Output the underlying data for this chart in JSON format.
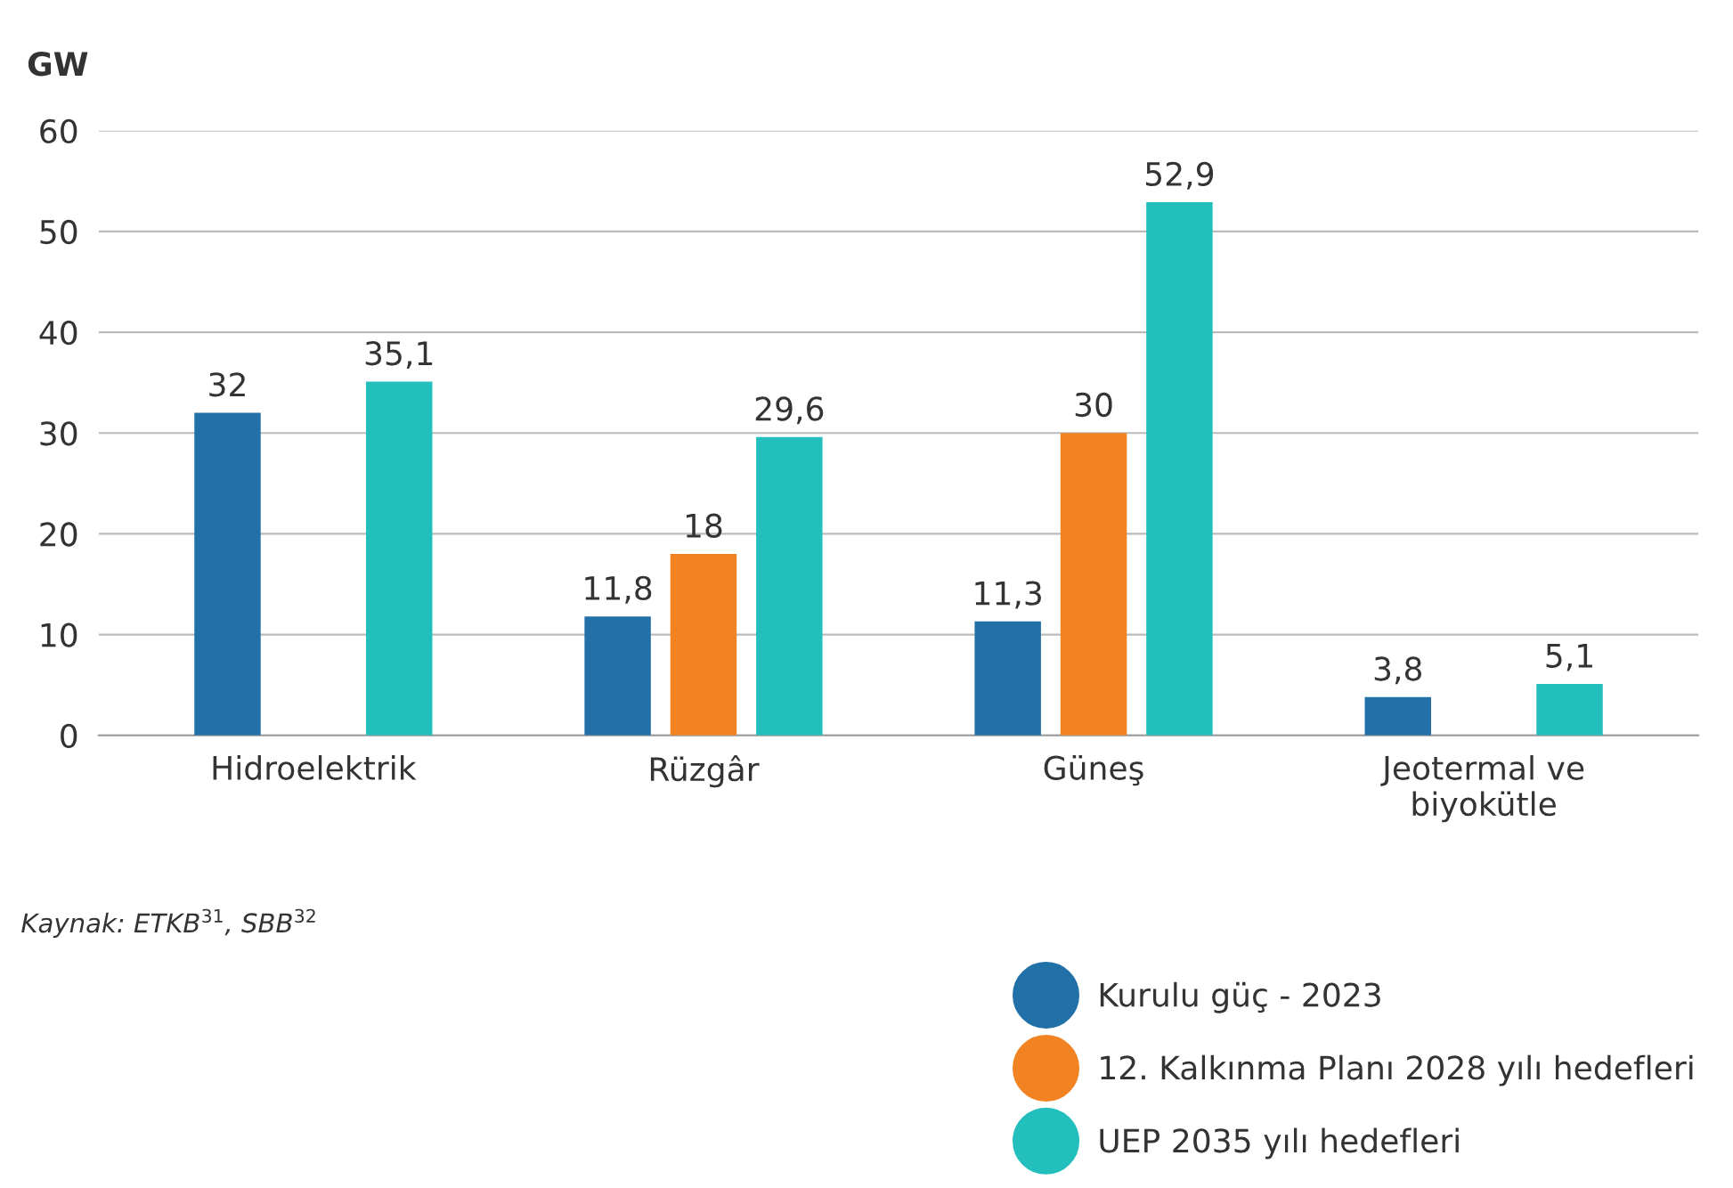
{
  "chart_data": {
    "type": "bar",
    "ylabel": "GW",
    "categories": [
      "Hidroelektrik",
      "Rüzgâr",
      "Güneş",
      "Jeotermal ve\nbiyokütle"
    ],
    "series": [
      {
        "name": "Kurulu güç - 2023",
        "color": "#2270a8",
        "values": [
          32,
          11.8,
          11.3,
          3.8
        ],
        "value_labels": [
          "32",
          "11,8",
          "11,3",
          "3,8"
        ]
      },
      {
        "name": "12. Kalkınma Planı 2028 yılı hedefleri",
        "color": "#f28322",
        "values": [
          null,
          18,
          30,
          null
        ],
        "value_labels": [
          null,
          "18",
          "30",
          null
        ]
      },
      {
        "name": "UEP 2035 yılı hedefleri",
        "color": "#22bfbd",
        "values": [
          35.1,
          29.6,
          52.9,
          5.1
        ],
        "value_labels": [
          "35,1",
          "29,6",
          "52,9",
          "5,1"
        ]
      }
    ],
    "ylim": [
      0,
      60
    ],
    "yticks": [
      0,
      10,
      20,
      30,
      40,
      50,
      60
    ],
    "grid": "y",
    "legend": "bottom right",
    "annotations": [
      "Kaynak: ETKB$^{31}$, SBB$^{32}$"
    ]
  }
}
